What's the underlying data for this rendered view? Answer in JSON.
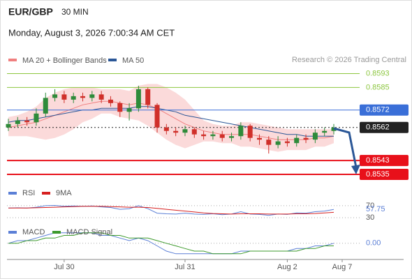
{
  "header": {
    "symbol": "EUR/GBP",
    "interval": "30 MIN",
    "timestamp": "Monday, August 3, 2026 7:00:34 AM CET"
  },
  "credit": "Research © 2026 Trading Central",
  "chart_data": {
    "type": "candlestick",
    "categories": [
      null,
      null,
      null,
      null,
      null,
      null,
      "Jul 30",
      null,
      null,
      null,
      null,
      null,
      null,
      null,
      null,
      null,
      null,
      null,
      null,
      "Jul 31",
      null,
      null,
      null,
      null,
      null,
      null,
      null,
      null,
      null,
      null,
      "Aug 2",
      null,
      null,
      null,
      null,
      "Aug 7"
    ],
    "open": [
      0.8562,
      0.8564,
      0.8566,
      0.8565,
      0.857,
      0.8579,
      0.8581,
      0.8578,
      0.858,
      0.8579,
      0.8581,
      0.8578,
      0.8576,
      0.8571,
      0.8573,
      0.8584,
      0.8575,
      0.8562,
      0.856,
      0.8559,
      0.8561,
      0.8558,
      0.8557,
      0.8558,
      0.8556,
      0.8557,
      0.8563,
      0.8556,
      0.8555,
      0.8552,
      0.8554,
      0.8553,
      0.8556,
      0.8555,
      0.8559,
      0.856
    ],
    "high": [
      0.8567,
      0.8568,
      0.8568,
      0.8573,
      0.8582,
      0.8584,
      0.8583,
      0.8582,
      0.8582,
      0.8583,
      0.8583,
      0.858,
      0.8577,
      0.8576,
      0.8586,
      0.8585,
      0.8576,
      0.8564,
      0.8562,
      0.8563,
      0.8562,
      0.856,
      0.856,
      0.856,
      0.8559,
      0.8565,
      0.8564,
      0.8558,
      0.8557,
      0.8557,
      0.8556,
      0.8558,
      0.8558,
      0.8561,
      0.8562,
      0.8564
    ],
    "low": [
      0.856,
      0.8562,
      0.8563,
      0.8563,
      0.8568,
      0.8577,
      0.8576,
      0.8576,
      0.8577,
      0.8577,
      0.8576,
      0.8574,
      0.8568,
      0.8566,
      0.8571,
      0.8573,
      0.8559,
      0.8558,
      0.8557,
      0.8557,
      0.8556,
      0.8555,
      0.8555,
      0.8554,
      0.8554,
      0.8555,
      0.8554,
      0.8552,
      0.8547,
      0.855,
      0.8551,
      0.8551,
      0.8553,
      0.8553,
      0.8557,
      0.8558
    ],
    "close": [
      0.8564,
      0.8566,
      0.8565,
      0.857,
      0.8579,
      0.8581,
      0.8578,
      0.858,
      0.8579,
      0.8581,
      0.8578,
      0.8576,
      0.8571,
      0.8573,
      0.8584,
      0.8575,
      0.8562,
      0.856,
      0.8559,
      0.8561,
      0.8558,
      0.8557,
      0.8558,
      0.8556,
      0.8557,
      0.8563,
      0.8556,
      0.8555,
      0.8552,
      0.8554,
      0.8553,
      0.8556,
      0.8555,
      0.8559,
      0.856,
      0.8562
    ],
    "up_color": "#2e8b3a",
    "down_color": "#d0302a",
    "ylim": [
      0.8529,
      0.86
    ],
    "overlays": [
      {
        "name": "MA 20 + Bollinger Bands",
        "color": "#f07f7f",
        "values": [
          0.8562,
          0.8563,
          0.8564,
          0.8565,
          0.8567,
          0.8569,
          0.8571,
          0.8573,
          0.8575,
          0.8576,
          0.8577,
          0.8577,
          0.8576,
          0.8575,
          0.8576,
          0.8575,
          0.8573,
          0.857,
          0.8567,
          0.8564,
          0.8562,
          0.856,
          0.8559,
          0.8558,
          0.8558,
          0.8558,
          0.8558,
          0.8557,
          0.8556,
          0.8555,
          0.8555,
          0.8555,
          0.8555,
          0.8556,
          0.8556,
          0.8557
        ],
        "upper": [
          0.8568,
          0.8569,
          0.8571,
          0.8574,
          0.8579,
          0.8582,
          0.8584,
          0.8585,
          0.8585,
          0.8585,
          0.8584,
          0.8584,
          0.8584,
          0.8583,
          0.8586,
          0.8587,
          0.8587,
          0.8585,
          0.8582,
          0.8578,
          0.8572,
          0.8566,
          0.8564,
          0.8563,
          0.8563,
          0.8565,
          0.8565,
          0.8564,
          0.8563,
          0.8562,
          0.8561,
          0.8561,
          0.8561,
          0.8561,
          0.8561,
          0.8561
        ],
        "lower": [
          0.8557,
          0.8557,
          0.8557,
          0.8556,
          0.8555,
          0.8556,
          0.8558,
          0.8561,
          0.8565,
          0.8567,
          0.857,
          0.857,
          0.8568,
          0.8567,
          0.8566,
          0.8563,
          0.8559,
          0.8555,
          0.8552,
          0.855,
          0.8552,
          0.8554,
          0.8554,
          0.8553,
          0.8553,
          0.8551,
          0.8551,
          0.855,
          0.8549,
          0.8548,
          0.8549,
          0.8549,
          0.8549,
          0.8551,
          0.8551,
          0.8553
        ],
        "band_color": "#fbdada"
      },
      {
        "name": "MA 50",
        "color": "#2b5797",
        "values": [
          0.8565,
          0.8566,
          0.8566,
          0.8567,
          0.8568,
          0.8569,
          0.857,
          0.8571,
          0.8572,
          0.8572,
          0.8573,
          0.8573,
          0.8573,
          0.8573,
          0.8574,
          0.8574,
          0.8573,
          0.8572,
          0.8571,
          0.8569,
          0.8568,
          0.8567,
          0.8566,
          0.8565,
          0.8564,
          0.8563,
          0.8562,
          0.8561,
          0.856,
          0.8559,
          0.8558,
          0.8558,
          0.8557,
          0.8557,
          0.8557,
          0.8557
        ]
      }
    ],
    "levels": [
      {
        "value": 0.8593,
        "color": "#8cc63f",
        "boxed": false,
        "line": "solid"
      },
      {
        "value": 0.8585,
        "color": "#8cc63f",
        "boxed": false,
        "line": "solid"
      },
      {
        "value": 0.8572,
        "color": "#3a6fd8",
        "boxed": true,
        "line": "solid"
      },
      {
        "value": 0.8562,
        "color": "#222222",
        "boxed": true,
        "line": "dotted"
      },
      {
        "value": 0.8543,
        "color": "#e8101a",
        "boxed": true,
        "line": "solid"
      },
      {
        "value": 0.8535,
        "color": "#e8101a",
        "boxed": true,
        "line": "solid"
      }
    ],
    "rsi_panel": {
      "ylim": [
        0,
        100
      ],
      "yticks": [
        70,
        30
      ],
      "series": [
        {
          "name": "RSI",
          "color": "#5b7fd6",
          "values": [
            62,
            63,
            62,
            65,
            70,
            71,
            68,
            69,
            68,
            69,
            66,
            64,
            58,
            60,
            70,
            60,
            45,
            43,
            42,
            45,
            42,
            41,
            43,
            40,
            42,
            50,
            42,
            41,
            38,
            42,
            41,
            46,
            45,
            50,
            52,
            57.75
          ]
        },
        {
          "name": "9MA",
          "color": "#d62020",
          "values": [
            62,
            62,
            62,
            63,
            64,
            65,
            66,
            67,
            68,
            68,
            68,
            67,
            66,
            65,
            65,
            64,
            61,
            58,
            55,
            52,
            49,
            46,
            44,
            43,
            42,
            43,
            43,
            43,
            42,
            42,
            42,
            43,
            43,
            44,
            46,
            48
          ]
        }
      ]
    },
    "macd_panel": {
      "ylim": [
        -0.0007,
        0.0005
      ],
      "yticks": [
        {
          "value": 0,
          "label": "0.00"
        }
      ],
      "series": [
        {
          "name": "MACD",
          "color": "#5b7fd6",
          "values": [
            0,
            0.0001,
            0.0001,
            0.0002,
            0.0003,
            0.0004,
            0.0004,
            0.0004,
            0.0004,
            0.0004,
            0.0003,
            0.0003,
            0.0002,
            0.0001,
            0.0002,
            0.0001,
            -0.0001,
            -0.0003,
            -0.0004,
            -0.0004,
            -0.0004,
            -0.0004,
            -0.0004,
            -0.0004,
            -0.0004,
            -0.0003,
            -0.0003,
            -0.0003,
            -0.0003,
            -0.0003,
            -0.0003,
            -0.0002,
            -0.0002,
            -0.0001,
            -0.0001,
            0
          ]
        },
        {
          "name": "MACD Signal",
          "color": "#3d9a2c",
          "values": [
            0,
            0,
            0.0001,
            0.0001,
            0.0002,
            0.0002,
            0.0003,
            0.0003,
            0.0004,
            0.0004,
            0.0004,
            0.0003,
            0.0003,
            0.0002,
            0.0002,
            0.0002,
            0.0001,
            0,
            -0.0001,
            -0.0002,
            -0.0003,
            -0.0003,
            -0.0004,
            -0.0004,
            -0.0004,
            -0.0004,
            -0.0003,
            -0.0003,
            -0.0003,
            -0.0003,
            -0.0003,
            -0.0003,
            -0.0002,
            -0.0002,
            -0.0001,
            -0.0001
          ]
        }
      ]
    }
  }
}
